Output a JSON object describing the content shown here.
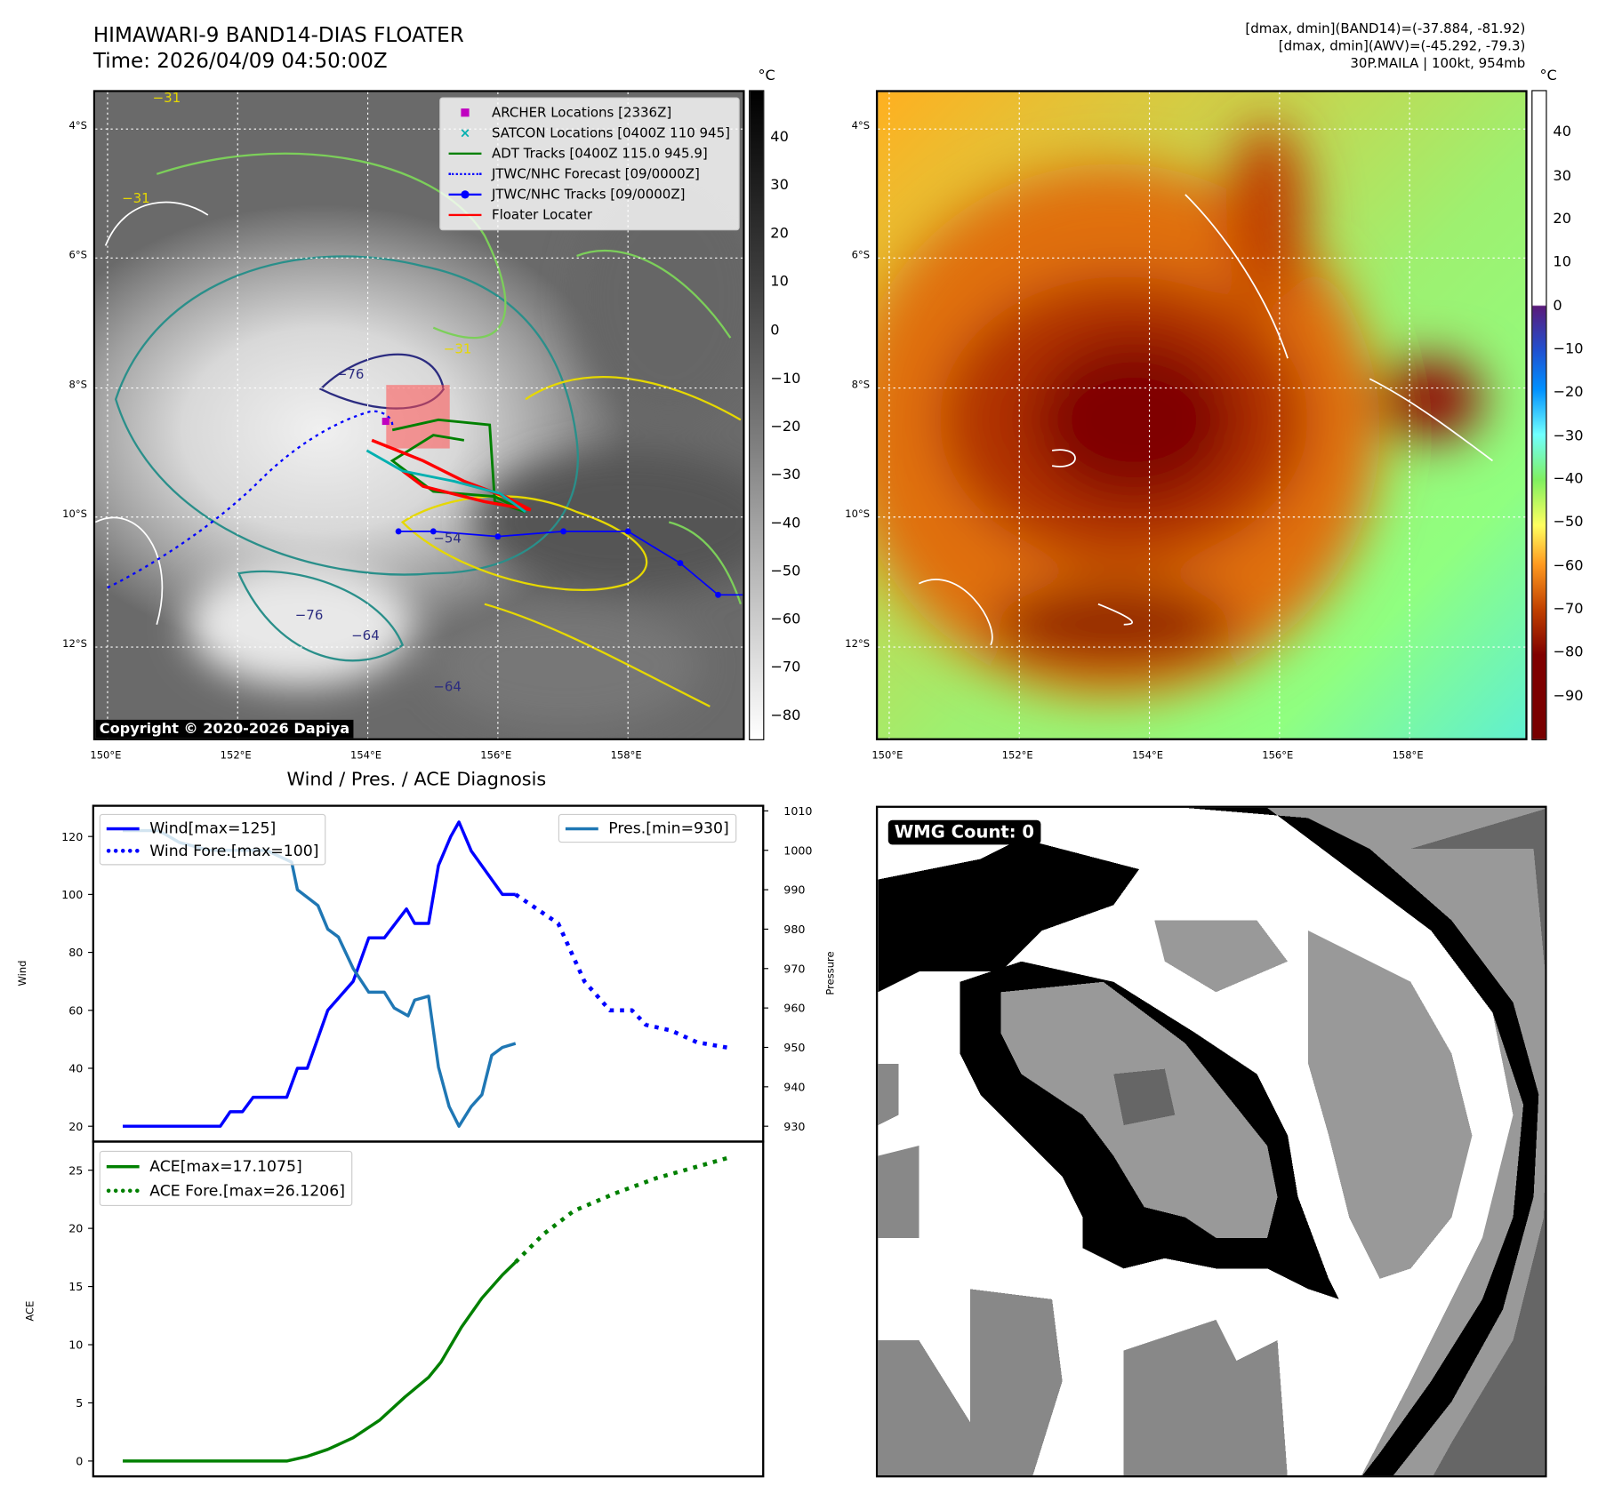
{
  "header": {
    "title": "HIMAWARI-9 BAND14-DIAS FLOATER",
    "time": "Time: 2026/04/09 04:50:00Z",
    "info": [
      "[dmax, dmin](BAND14)=(-37.884, -81.92)",
      "[dmax, dmin](AWV)=(-45.292, -79.3)",
      "30P.MAILA | 100kt, 954mb"
    ]
  },
  "maps": {
    "lon_ticks": [
      "150°E",
      "152°E",
      "154°E",
      "156°E",
      "158°E"
    ],
    "lat_ticks": [
      "4°S",
      "6°S",
      "8°S",
      "10°S",
      "12°S"
    ],
    "unit": "°C",
    "cbar1_ticks": [
      "40",
      "30",
      "20",
      "10",
      "0",
      "−10",
      "−20",
      "−30",
      "−40",
      "−50",
      "−60",
      "−70",
      "−80"
    ],
    "cbar2_ticks": [
      "40",
      "30",
      "20",
      "10",
      "0",
      "−10",
      "−20",
      "−30",
      "−40",
      "−50",
      "−60",
      "−70",
      "−80",
      "−90"
    ],
    "copyright": "Copyright © 2020-2026 Dapiya",
    "contour_labels": [
      "−31",
      "−31",
      "−64",
      "−64",
      "−76",
      "−54",
      "−64",
      "−76",
      "−64",
      "−64",
      "−54"
    ],
    "legend": [
      "ARCHER Locations [2336Z]",
      "SATCON Locations [0400Z 110 945]",
      "ADT Tracks [0400Z 115.0 945.9]",
      "JTWC/NHC Forecast [09/0000Z]",
      "JTWC/NHC Tracks [09/0000Z]",
      "Floater Locater"
    ],
    "colors": {
      "archer": "#c000c0",
      "satcon": "#00b0b0",
      "adt": "#008000",
      "jtwc": "#0000ff",
      "floater": "#ff0000"
    }
  },
  "wmg": {
    "label": "WMG Count: 0"
  },
  "chart_data": [
    {
      "type": "line",
      "title": "Wind / Pres. / ACE Diagnosis",
      "ylabel": "Wind",
      "y2label": "Pressure",
      "ylim": [
        14.7,
        130.6
      ],
      "y2lim": [
        926.1,
        1011.3
      ],
      "xlim": [
        -3.6,
        78.1
      ],
      "yticks": [
        20,
        40,
        60,
        80,
        100,
        120
      ],
      "y2ticks": [
        930,
        940,
        950,
        960,
        970,
        980,
        990,
        1000,
        1010
      ],
      "series": [
        {
          "name": "Wind[max=125]",
          "color": "#0000ff",
          "style": "solid",
          "axis": "left",
          "x": [
            0,
            11.9,
            13.1,
            14.6,
            15.9,
            20,
            21.3,
            22.5,
            25,
            28.1,
            30,
            31.9,
            34.6,
            35.6,
            37.3,
            38.5,
            40,
            41,
            42.5,
            46.3,
            47.9
          ],
          "y": [
            20,
            20,
            25,
            25,
            30,
            30,
            40,
            40,
            60,
            70,
            85,
            85,
            95,
            90,
            90,
            110,
            120,
            125,
            115,
            100,
            100
          ]
        },
        {
          "name": "Wind Fore.[max=100]",
          "color": "#0000ff",
          "style": "dotted",
          "axis": "left",
          "x": [
            47.9,
            53.1,
            56.3,
            59.4,
            62.1,
            63.8,
            66.9,
            70,
            74
          ],
          "y": [
            100,
            90,
            70,
            60,
            60,
            55,
            53,
            49,
            47
          ]
        },
        {
          "name": "Pres.[min=930]",
          "color": "#1f77b4",
          "style": "solid",
          "axis": "right",
          "x": [
            0,
            4.4,
            6.9,
            10.6,
            17.5,
            20.6,
            21.3,
            23.8,
            25,
            26.3,
            28.1,
            30,
            31.9,
            33.1,
            34.8,
            35.6,
            37.3,
            38.5,
            39.8,
            41,
            42.5,
            43.8,
            45,
            46.3,
            47.9
          ],
          "y": [
            1005,
            1005,
            1002,
            1000,
            1000,
            997,
            990,
            986,
            980,
            978,
            970,
            964,
            964,
            960,
            958,
            962,
            963,
            945,
            935,
            930,
            935,
            938,
            948,
            950,
            951
          ]
        }
      ]
    },
    {
      "type": "line",
      "ylabel": "ACE",
      "ylim": [
        -1.32,
        27.46
      ],
      "xlim": [
        -3.6,
        78.1
      ],
      "yticks": [
        0,
        5,
        10,
        15,
        20,
        25
      ],
      "series": [
        {
          "name": "ACE[max=17.1075]",
          "color": "#008000",
          "style": "solid",
          "x": [
            0,
            20,
            22.5,
            25,
            28.1,
            31.3,
            34.4,
            37.3,
            38.8,
            41.3,
            43.8,
            46.3,
            47.9
          ],
          "y": [
            0,
            0,
            0.4,
            1,
            2,
            3.5,
            5.5,
            7.2,
            8.5,
            11.5,
            14,
            16,
            17.1
          ]
        },
        {
          "name": "ACE Fore.[max=26.1206]",
          "color": "#008000",
          "style": "dotted",
          "x": [
            47.9,
            51.3,
            55,
            60,
            65,
            70,
            74
          ],
          "y": [
            17.1,
            19.5,
            21.5,
            23,
            24.3,
            25.3,
            26.1
          ]
        }
      ]
    }
  ]
}
